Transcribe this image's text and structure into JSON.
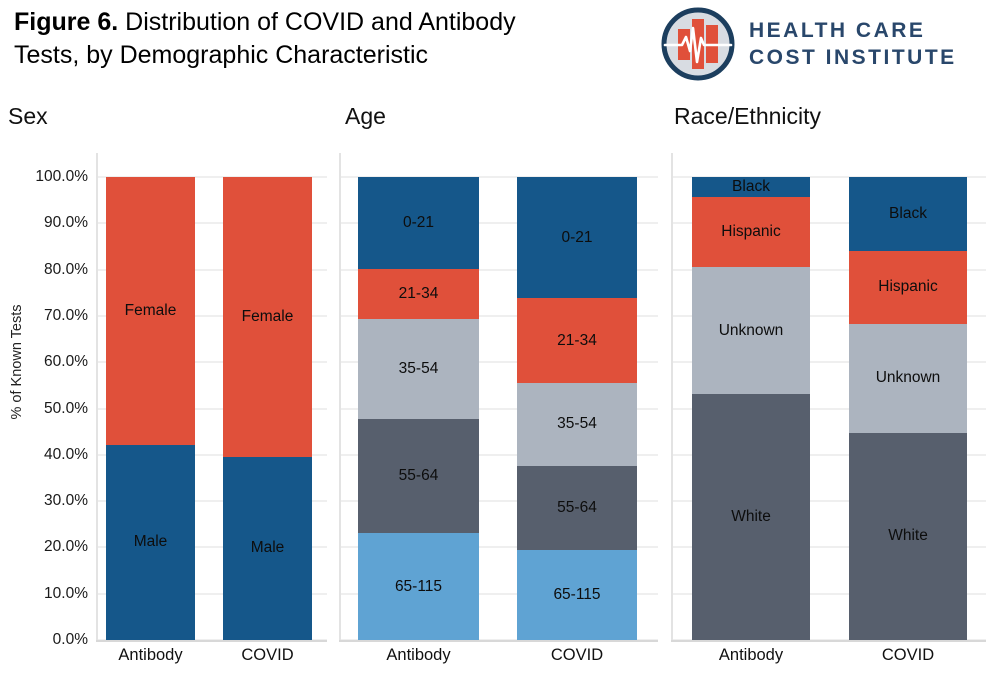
{
  "header": {
    "figure_label": "Figure 6.",
    "title_line1": " Distribution of COVID and Antibody",
    "title_line2": "Tests, by Demographic Characteristic"
  },
  "logo": {
    "icon": "hcci-bars-ekg-icon",
    "line1": "HEALTH CARE",
    "line2": "COST INSTITUTE",
    "colors": {
      "navy": "#1C3E5E",
      "fill": "#D8DCE2",
      "bars": "#E0503A",
      "wordmark": "#29476B"
    }
  },
  "axis": {
    "y_title": "% of Known Tests",
    "yticks_top_to_bottom": [
      "100.0%",
      "90.0%",
      "80.0%",
      "70.0%",
      "60.0%",
      "50.0%",
      "40.0%",
      "30.0%",
      "20.0%",
      "10.0%",
      "0.0%"
    ],
    "grid": "horizontal-major-only"
  },
  "palette": {
    "dark_blue": "#15578A",
    "red_orange": "#E0503A",
    "light_gray": "#ACB4BF",
    "slate_gray": "#575F6D",
    "light_blue": "#5FA3D3",
    "gridline": "#efefef",
    "axis_line": "#d8d8d8"
  },
  "chart_data": [
    {
      "type": "bar",
      "stacked": true,
      "title": "Sex",
      "categories": [
        "Antibody",
        "COVID"
      ],
      "ylabel": "% of Known Tests",
      "ylim": [
        0,
        100
      ],
      "legend": "labels-inside-segments",
      "series_bottom_to_top": [
        {
          "name": "Male",
          "color": "#15578A",
          "values": [
            42.2,
            39.6
          ]
        },
        {
          "name": "Female",
          "color": "#E0503A",
          "values": [
            57.8,
            60.4
          ]
        }
      ]
    },
    {
      "type": "bar",
      "stacked": true,
      "title": "Age",
      "categories": [
        "Antibody",
        "COVID"
      ],
      "ylabel": "% of Known Tests",
      "ylim": [
        0,
        100
      ],
      "legend": "labels-inside-segments",
      "series_bottom_to_top": [
        {
          "name": "65-115",
          "color": "#5FA3D3",
          "values": [
            23.0,
            19.4
          ]
        },
        {
          "name": "55-64",
          "color": "#575F6D",
          "values": [
            24.8,
            18.2
          ]
        },
        {
          "name": "35-54",
          "color": "#ACB4BF",
          "values": [
            21.6,
            17.9
          ]
        },
        {
          "name": "21-34",
          "color": "#E0503A",
          "values": [
            10.7,
            18.3
          ]
        },
        {
          "name": "0-21",
          "color": "#15578A",
          "values": [
            19.9,
            26.2
          ]
        }
      ]
    },
    {
      "type": "bar",
      "stacked": true,
      "title": "Race/Ethnicity",
      "categories": [
        "Antibody",
        "COVID"
      ],
      "ylabel": "% of Known Tests",
      "ylim": [
        0,
        100
      ],
      "legend": "labels-inside-segments",
      "series_bottom_to_top": [
        {
          "name": "White",
          "color": "#575F6D",
          "values": [
            55.4,
            44.7
          ]
        },
        {
          "name": "Unknown",
          "color": "#ACB4BF",
          "values": [
            28.6,
            23.6
          ]
        },
        {
          "name": "Hispanic",
          "color": "#E0503A",
          "values": [
            15.8,
            15.8
          ]
        },
        {
          "name": "Black",
          "color": "#15578A",
          "values": [
            4.6,
            15.9
          ]
        }
      ]
    }
  ]
}
